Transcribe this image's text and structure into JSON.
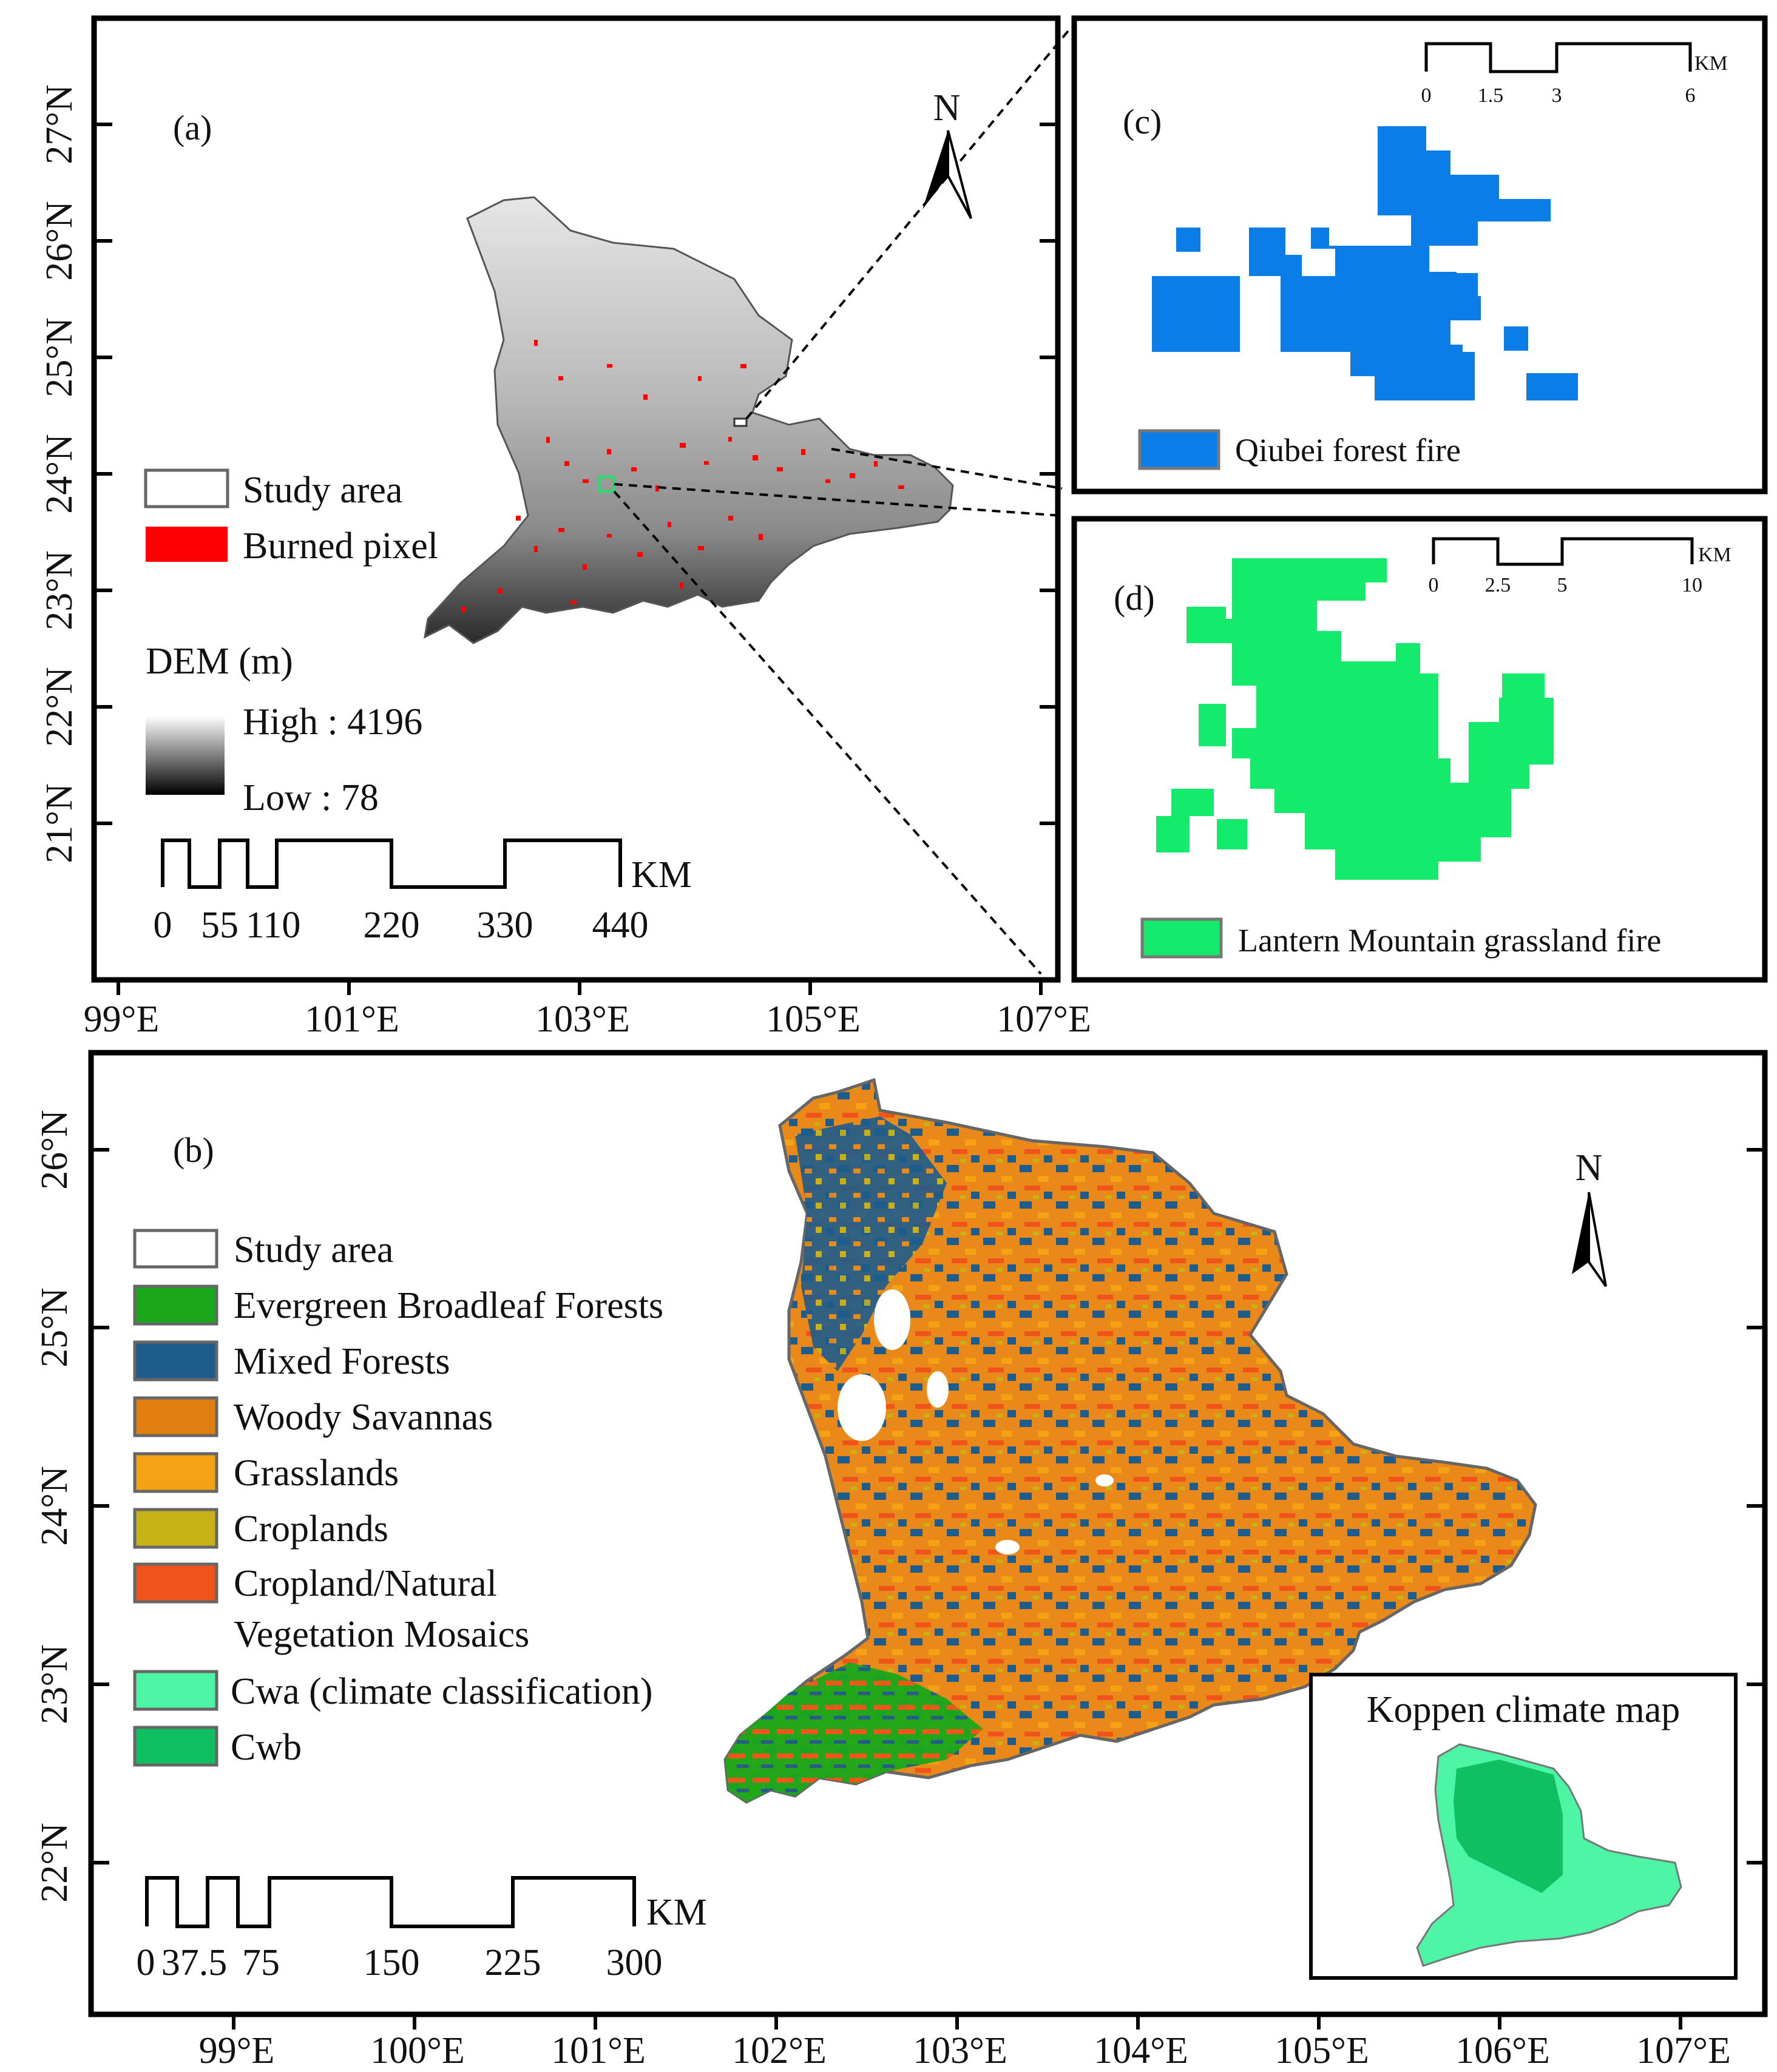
{
  "panel_a": {
    "label": "(a)",
    "north": "N",
    "lat_ticks": [
      "27°N",
      "26°N",
      "25°N",
      "24°N",
      "23°N",
      "22°N",
      "21°N"
    ],
    "lon_ticks": [
      "99°E",
      "101°E",
      "103°E",
      "105°E",
      "107°E"
    ],
    "legend": {
      "study_area": "Study area",
      "burned_pixel": "Burned pixel",
      "dem_title": "DEM (m)",
      "high": "High : 4196",
      "low": "Low : 78"
    },
    "scale": {
      "ticks": [
        "0",
        "55",
        "110",
        "220",
        "330",
        "440"
      ],
      "unit": "KM"
    },
    "colors": {
      "burned": "#ff0000"
    }
  },
  "panel_b": {
    "label": "(b)",
    "north": "N",
    "lat_ticks": [
      "26°N",
      "25°N",
      "24°N",
      "23°N",
      "22°N"
    ],
    "lon_ticks": [
      "99°E",
      "100°E",
      "101°E",
      "102°E",
      "103°E",
      "104°E",
      "105°E",
      "106°E",
      "107°E"
    ],
    "legend": [
      {
        "label": "Study area",
        "color": "#ffffff"
      },
      {
        "label": "Evergreen Broadleaf Forests",
        "color": "#1aa81a"
      },
      {
        "label": "Mixed Forests",
        "color": "#1e5c8c"
      },
      {
        "label": "Woody Savannas",
        "color": "#e07e0e"
      },
      {
        "label": "Grasslands",
        "color": "#f4a214"
      },
      {
        "label": "Croplands",
        "color": "#c7b414"
      },
      {
        "label": "Cropland/Natural",
        "label2": "Vegetation Mosaics",
        "color": "#f0541a"
      },
      {
        "label": "Cwa (climate classification)",
        "color": "#4cf5a4"
      },
      {
        "label": "Cwb",
        "color": "#10c060"
      }
    ],
    "scale": {
      "ticks": [
        "0",
        "37.5",
        "75",
        "150",
        "225",
        "300"
      ],
      "unit": "KM"
    },
    "koppen_title": "Koppen climate map"
  },
  "panel_c": {
    "label": "(c)",
    "legend": "Qiubei forest fire",
    "color": "#0a7ee6",
    "scale": {
      "ticks": [
        "0",
        "1.5",
        "3",
        "6"
      ],
      "unit": "KM"
    }
  },
  "panel_d": {
    "label": "(d)",
    "legend": "Lantern Mountain grassland fire",
    "color": "#14ea6a",
    "scale": {
      "ticks": [
        "0",
        "2.5",
        "5",
        "10"
      ],
      "unit": "KM"
    }
  }
}
